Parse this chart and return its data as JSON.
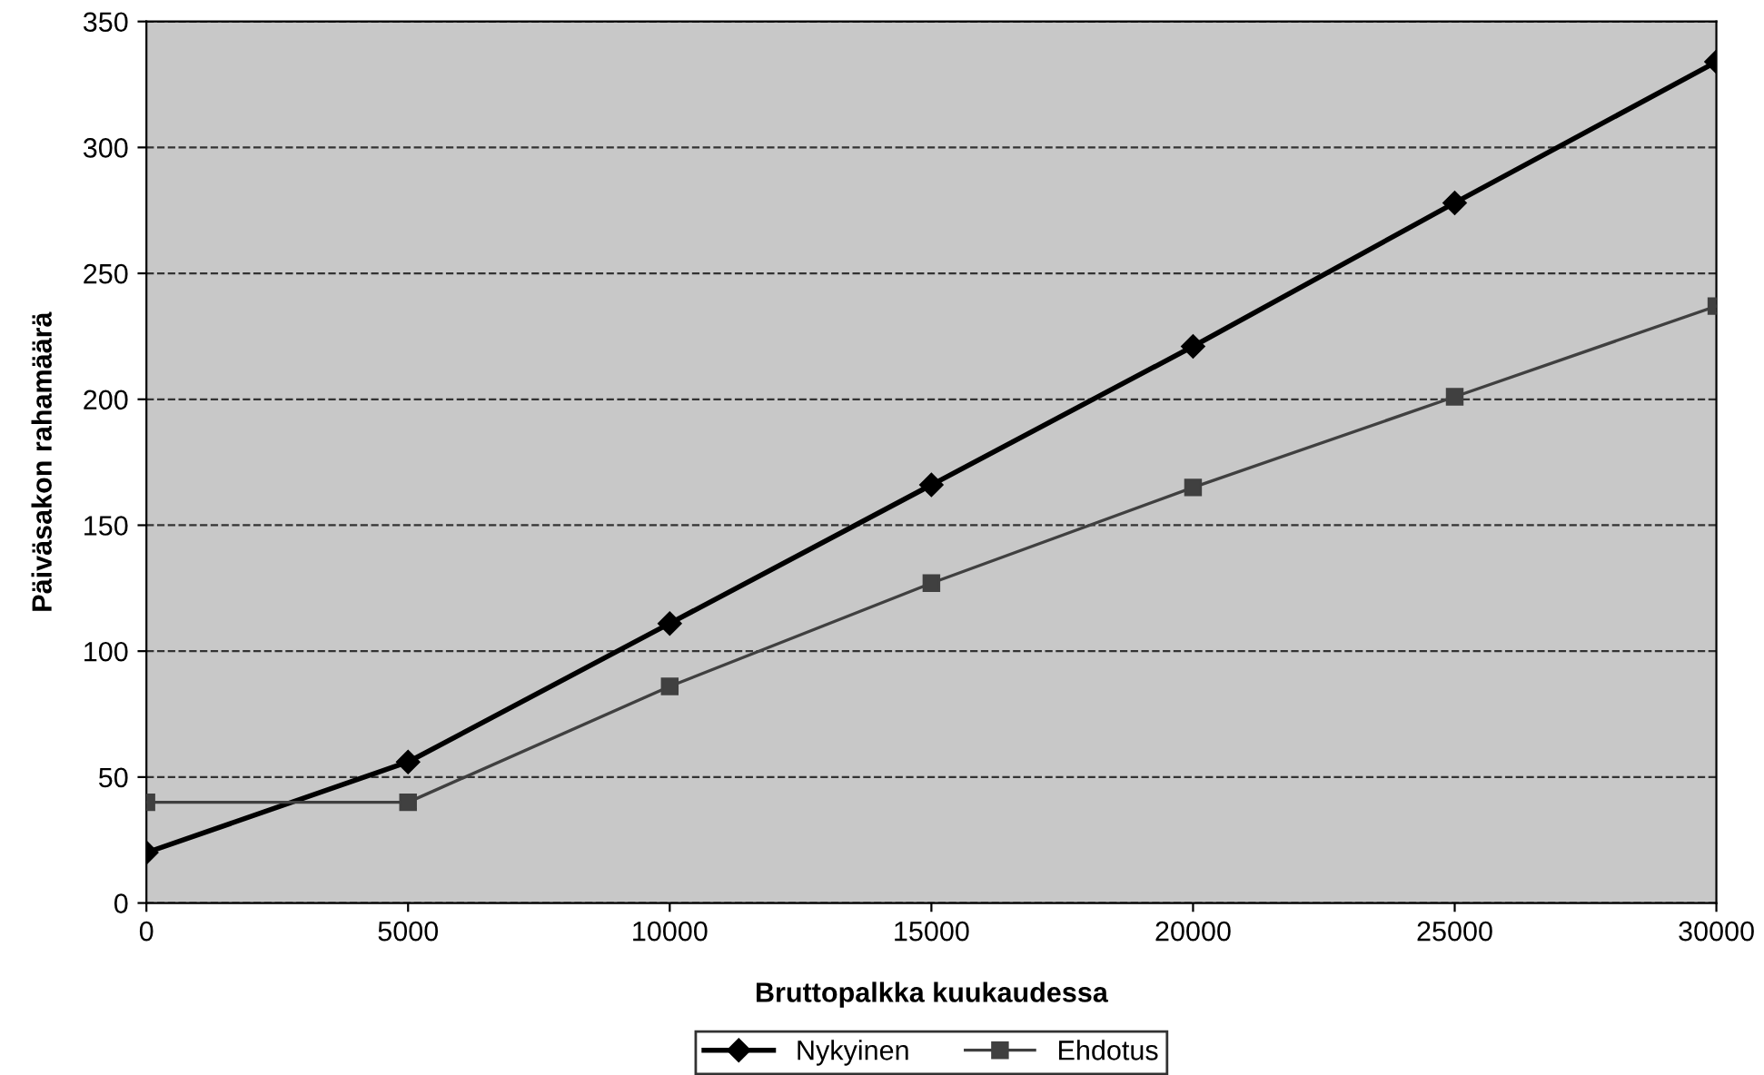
{
  "chart_data": {
    "type": "line",
    "xlabel": "Bruttopalkka kuukaudessa",
    "ylabel": "Päiväsakon rahamäärä",
    "x": [
      0,
      5000,
      10000,
      15000,
      20000,
      25000,
      30000
    ],
    "series": [
      {
        "name": "Nykyinen",
        "color": "#000000",
        "marker": "diamond",
        "values": [
          20,
          56,
          111,
          166,
          221,
          278,
          334
        ]
      },
      {
        "name": "Ehdotus",
        "color": "#404040",
        "marker": "square",
        "values": [
          40,
          40,
          86,
          127,
          165,
          201,
          237
        ]
      }
    ],
    "xlim": [
      0,
      30000
    ],
    "xticks": [
      0,
      5000,
      10000,
      15000,
      20000,
      25000,
      30000
    ],
    "ylim": [
      0,
      350
    ],
    "yticks": [
      0,
      50,
      100,
      150,
      200,
      250,
      300,
      350
    ],
    "grid": "y",
    "legend": "bottom",
    "line_style": "solid"
  }
}
